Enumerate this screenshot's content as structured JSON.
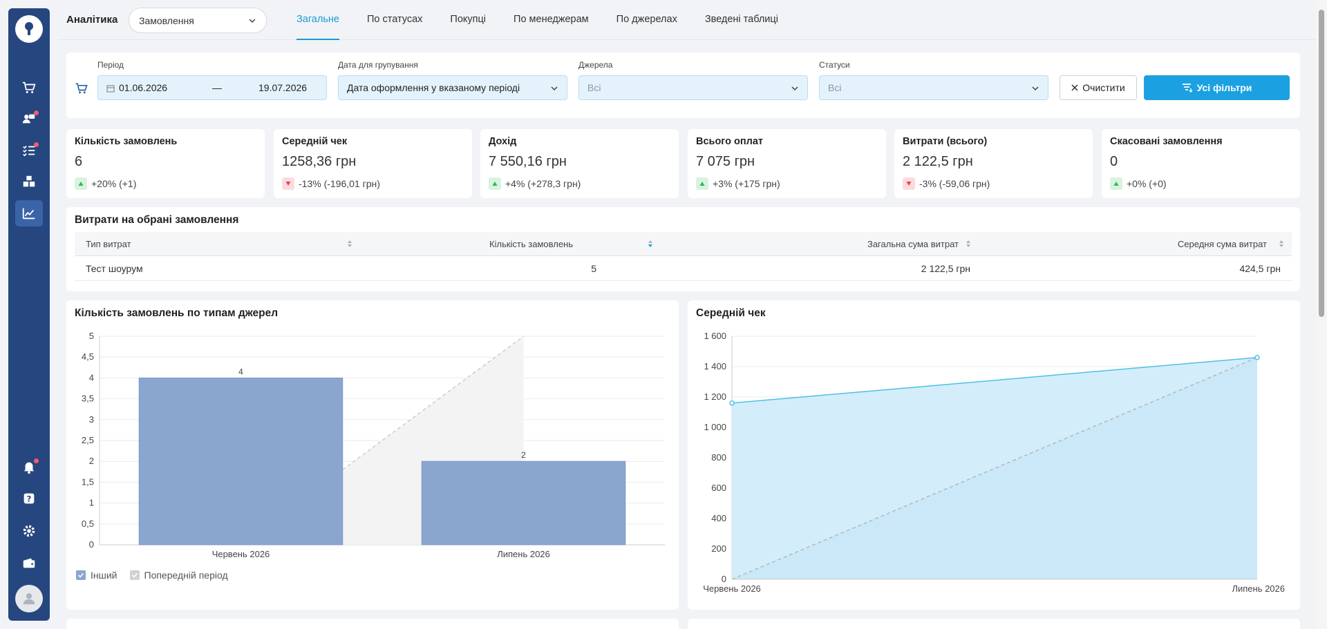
{
  "header": {
    "app_title": "Аналітика",
    "report_select": "Замовлення",
    "tabs": [
      "Загальне",
      "По статусах",
      "Покупці",
      "По менеджерам",
      "По джерелах",
      "Зведені таблиці"
    ]
  },
  "filters": {
    "period_label": "Період",
    "date_from": "01.06.2026",
    "date_sep": "—",
    "date_to": "19.07.2026",
    "grouping_label": "Дата для групування",
    "grouping_value": "Дата оформлення у вказаному періоді",
    "sources_label": "Джерела",
    "sources_value": "Всі",
    "statuses_label": "Статуси",
    "statuses_value": "Всі",
    "clear_button": "Очистити",
    "all_filters_button": "Усі фільтри"
  },
  "kpis": [
    {
      "label": "Кількість замовлень",
      "value": "6",
      "delta": "+20% (+1)",
      "trend": "up"
    },
    {
      "label": "Середній чек",
      "value": "1258,36 грн",
      "delta": "-13% (-196,01 грн)",
      "trend": "down"
    },
    {
      "label": "Дохід",
      "value": "7 550,16 грн",
      "delta": "+4% (+278,3 грн)",
      "trend": "up"
    },
    {
      "label": "Всього оплат",
      "value": "7 075 грн",
      "delta": "+3% (+175 грн)",
      "trend": "up"
    },
    {
      "label": "Витрати (всього)",
      "value": "2 122,5 грн",
      "delta": "-3% (-59,06 грн)",
      "trend": "down"
    },
    {
      "label": "Скасовані замовлення",
      "value": "0",
      "delta": "+0% (+0)",
      "trend": "up"
    }
  ],
  "costs": {
    "title": "Витрати на обрані замовлення",
    "columns": [
      "Тип витрат",
      "Кількість замовлень",
      "Загальна сума витрат",
      "Середня сума витрат"
    ],
    "rows": [
      [
        "Тест шоурум",
        "5",
        "2 122,5 грн",
        "424,5 грн"
      ]
    ]
  },
  "chart_data": [
    {
      "type": "bar",
      "title": "Кількість замовлень по типам джерел",
      "categories": [
        "Червень 2026",
        "Липень 2026"
      ],
      "series": [
        {
          "name": "Інший",
          "values": [
            4,
            2
          ],
          "color": "#8aa6cf"
        },
        {
          "name": "Попередній період",
          "values": [
            null,
            5
          ],
          "color": "#cfd3d8"
        }
      ],
      "data_labels": [
        "4",
        "2"
      ],
      "y_ticks": [
        "0",
        "0,5",
        "1",
        "1,5",
        "2",
        "2,5",
        "3",
        "3,5",
        "4",
        "4,5",
        "5"
      ],
      "ylim": [
        0,
        5
      ],
      "legend": "bottom-left",
      "grid": true
    },
    {
      "type": "area",
      "title": "Середній чек",
      "categories": [
        "Червень 2026",
        "Липень 2026"
      ],
      "series": [
        {
          "values": [
            1160,
            1460
          ],
          "color": "#4ec0e6"
        },
        {
          "values": [
            0,
            1460
          ],
          "color": "#b0b8c0"
        }
      ],
      "y_ticks": [
        "0",
        "200",
        "400",
        "600",
        "800",
        "1 000",
        "1 200",
        "1 400",
        "1 600"
      ],
      "ylim": [
        0,
        1600
      ],
      "grid": true
    }
  ],
  "icons": {
    "logo": "key-icon",
    "sidebar": [
      "cart-icon",
      "clients-icon",
      "tasks-icon",
      "warehouse-icon",
      "analytics-icon",
      "bell-icon",
      "help-icon",
      "gear-icon",
      "wallet-icon",
      "user-icon"
    ]
  },
  "colors": {
    "sidebar": "#26467f",
    "accent": "#1ba1e2",
    "bar": "#8aa6cf",
    "area": "#4ec0e6",
    "up": "#2fb65a",
    "down": "#e5414f"
  }
}
